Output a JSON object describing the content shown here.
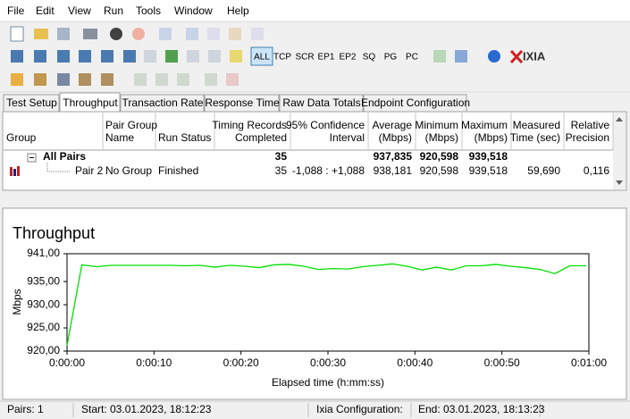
{
  "menu": [
    "File",
    "Edit",
    "View",
    "Run",
    "Tools",
    "Window",
    "Help"
  ],
  "toolbar": {
    "protocol_buttons": [
      "ALL",
      "TCP",
      "SCR",
      "EP1",
      "EP2",
      "SQ",
      "PG",
      "PC"
    ],
    "logo": "IXIA"
  },
  "tabs": [
    "Test Setup",
    "Throughput",
    "Transaction Rate",
    "Response Time",
    "Raw Data Totals",
    "Endpoint Configuration"
  ],
  "table": {
    "headers": [
      [
        "Group"
      ],
      [
        "Pair Group",
        "Name"
      ],
      [
        "Run Status"
      ],
      [
        "Timing Records",
        "Completed"
      ],
      [
        "95% Confidence",
        "Interval"
      ],
      [
        "Average",
        "(Mbps)"
      ],
      [
        "Minimum",
        "(Mbps)"
      ],
      [
        "Maximum",
        "(Mbps)"
      ],
      [
        "Measured",
        "Time (sec)"
      ],
      [
        "Relative",
        "Precision"
      ]
    ],
    "rows": [
      {
        "group": "All Pairs",
        "records": "35",
        "average": "937,835",
        "minimum": "920,598",
        "maximum": "939,518"
      },
      {
        "group": "Pair 2",
        "pair_group": "No Group",
        "status": "Finished",
        "records": "35",
        "confidence": "-1,088 : +1,088",
        "average": "938,181",
        "minimum": "920,598",
        "maximum": "939,518",
        "time": "59,690",
        "precision": "0,116"
      }
    ]
  },
  "chart_data": {
    "type": "line",
    "title": "Throughput",
    "x_label": "Elapsed time (h:mm:ss)",
    "y_label": "Mbps",
    "x": [
      0,
      1.7,
      3.4,
      5.1,
      6.8,
      8.5,
      10.2,
      11.9,
      13.6,
      15.3,
      17.0,
      18.7,
      20.4,
      22.1,
      23.8,
      25.5,
      27.2,
      28.9,
      30.6,
      32.3,
      34.0,
      35.7,
      37.4,
      39.1,
      40.8,
      42.5,
      44.2,
      45.9,
      47.6,
      49.3,
      51.0,
      52.7,
      54.4,
      56.1,
      57.8,
      59.7
    ],
    "series": [
      {
        "name": "Pair 2",
        "color": "#00e000",
        "values": [
          921.2,
          938.6,
          938.2,
          938.5,
          938.5,
          938.5,
          938.5,
          938.5,
          938.4,
          938.5,
          938.1,
          938.5,
          938.3,
          938.0,
          938.6,
          938.7,
          938.3,
          937.6,
          937.8,
          937.7,
          938.2,
          938.5,
          938.8,
          938.3,
          937.5,
          938.1,
          937.5,
          938.4,
          938.4,
          938.7,
          938.3,
          938.0,
          937.6,
          936.7,
          938.4,
          938.4
        ]
      }
    ],
    "xlim": [
      0,
      60
    ],
    "xticks": [
      {
        "value": 0,
        "label": "0:00:00"
      },
      {
        "value": 10,
        "label": "0:00:10"
      },
      {
        "value": 20,
        "label": "0:00:20"
      },
      {
        "value": 30,
        "label": "0:00:30"
      },
      {
        "value": 40,
        "label": "0:00:40"
      },
      {
        "value": 50,
        "label": "0:00:50"
      },
      {
        "value": 60,
        "label": "0:01:00"
      }
    ],
    "ylim": [
      920,
      941
    ],
    "yticks": [
      {
        "value": 920,
        "label": "920,00"
      },
      {
        "value": 925,
        "label": "925,00"
      },
      {
        "value": 930,
        "label": "930,00"
      },
      {
        "value": 935,
        "label": "935,00"
      },
      {
        "value": 941,
        "label": "941,00"
      }
    ]
  },
  "status_bar": [
    "Pairs: 1",
    "Start: 03.01.2023, 18:12:23",
    "Ixia Configuration:",
    "End: 03.01.2023, 18:13:23"
  ]
}
